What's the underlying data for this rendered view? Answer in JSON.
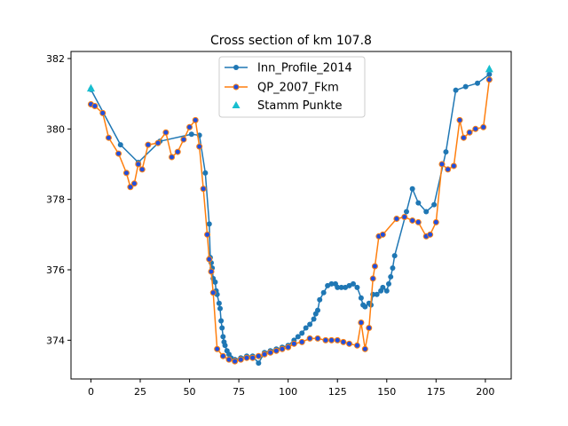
{
  "chart_data": {
    "type": "line",
    "title": "Cross section of km 107.8",
    "xlabel": "",
    "ylabel": "",
    "xlim": [
      -10.1,
      213.1
    ],
    "ylim": [
      372.9,
      382.2
    ],
    "xticks": [
      0,
      25,
      50,
      75,
      100,
      125,
      150,
      175,
      200
    ],
    "yticks": [
      374,
      376,
      378,
      380,
      382
    ],
    "grid": false,
    "legend": "top-center",
    "series": [
      {
        "name": "Inn_Profile_2014",
        "color": "#1f77b4",
        "marker": "dot",
        "points": [
          [
            0,
            381.12
          ],
          [
            15,
            379.55
          ],
          [
            24,
            379.05
          ],
          [
            35,
            379.65
          ],
          [
            51,
            379.85
          ],
          [
            55,
            379.82
          ],
          [
            58,
            378.75
          ],
          [
            60,
            377.3
          ],
          [
            60.5,
            376.35
          ],
          [
            61,
            376.2
          ],
          [
            61.5,
            376.05
          ],
          [
            62,
            375.75
          ],
          [
            63,
            375.65
          ],
          [
            63.5,
            375.4
          ],
          [
            64,
            375.3
          ],
          [
            65,
            375.05
          ],
          [
            65.5,
            374.9
          ],
          [
            66,
            374.55
          ],
          [
            66.5,
            374.35
          ],
          [
            67,
            374.1
          ],
          [
            67.5,
            373.95
          ],
          [
            68,
            373.85
          ],
          [
            69,
            373.7
          ],
          [
            70,
            373.6
          ],
          [
            71,
            373.5
          ],
          [
            73,
            373.45
          ],
          [
            76,
            373.5
          ],
          [
            79,
            373.55
          ],
          [
            82,
            373.55
          ],
          [
            85,
            373.35
          ],
          [
            88,
            373.65
          ],
          [
            91,
            373.7
          ],
          [
            94,
            373.75
          ],
          [
            97,
            373.8
          ],
          [
            100,
            373.85
          ],
          [
            103,
            374.0
          ],
          [
            105,
            374.1
          ],
          [
            107,
            374.2
          ],
          [
            109,
            374.35
          ],
          [
            111,
            374.45
          ],
          [
            113,
            374.6
          ],
          [
            114,
            374.75
          ],
          [
            115,
            374.85
          ],
          [
            116,
            375.15
          ],
          [
            118,
            375.35
          ],
          [
            120,
            375.55
          ],
          [
            122,
            375.6
          ],
          [
            124,
            375.6
          ],
          [
            125,
            375.5
          ],
          [
            127,
            375.5
          ],
          [
            129,
            375.5
          ],
          [
            131,
            375.55
          ],
          [
            133,
            375.6
          ],
          [
            135,
            375.5
          ],
          [
            137,
            375.2
          ],
          [
            138,
            375.0
          ],
          [
            139,
            374.95
          ],
          [
            141,
            375.05
          ],
          [
            142,
            375.0
          ],
          [
            143,
            375.3
          ],
          [
            145,
            375.3
          ],
          [
            147,
            375.4
          ],
          [
            148,
            375.5
          ],
          [
            150,
            375.4
          ],
          [
            151,
            375.6
          ],
          [
            152,
            375.8
          ],
          [
            153,
            376.05
          ],
          [
            154,
            376.4
          ],
          [
            160,
            377.65
          ],
          [
            163,
            378.3
          ],
          [
            166,
            377.9
          ],
          [
            170,
            377.65
          ],
          [
            174,
            377.85
          ],
          [
            180,
            379.35
          ],
          [
            185,
            381.1
          ],
          [
            190,
            381.2
          ],
          [
            196,
            381.3
          ],
          [
            202,
            381.55
          ]
        ]
      },
      {
        "name": "QP_2007_Fkm",
        "color": "#ff7f0e",
        "marker": "dot",
        "points": [
          [
            0,
            380.7
          ],
          [
            2,
            380.65
          ],
          [
            6,
            380.45
          ],
          [
            9,
            379.75
          ],
          [
            14,
            379.3
          ],
          [
            18,
            378.75
          ],
          [
            20,
            378.35
          ],
          [
            22,
            378.45
          ],
          [
            24,
            379.0
          ],
          [
            26,
            378.85
          ],
          [
            29,
            379.55
          ],
          [
            34,
            379.6
          ],
          [
            38,
            379.9
          ],
          [
            41,
            379.2
          ],
          [
            44,
            379.35
          ],
          [
            47,
            379.7
          ],
          [
            50,
            380.05
          ],
          [
            53,
            380.25
          ],
          [
            55,
            379.5
          ],
          [
            57,
            378.3
          ],
          [
            59,
            377.0
          ],
          [
            60,
            376.3
          ],
          [
            61,
            375.95
          ],
          [
            62,
            375.35
          ],
          [
            64,
            373.75
          ],
          [
            67,
            373.55
          ],
          [
            70,
            373.45
          ],
          [
            73,
            373.4
          ],
          [
            76,
            373.45
          ],
          [
            79,
            373.5
          ],
          [
            82,
            373.5
          ],
          [
            85,
            373.55
          ],
          [
            88,
            373.6
          ],
          [
            91,
            373.65
          ],
          [
            94,
            373.7
          ],
          [
            97,
            373.75
          ],
          [
            100,
            373.8
          ],
          [
            103,
            373.9
          ],
          [
            107,
            373.95
          ],
          [
            111,
            374.05
          ],
          [
            115,
            374.05
          ],
          [
            119,
            374.0
          ],
          [
            122,
            374.0
          ],
          [
            125,
            374.0
          ],
          [
            128,
            373.95
          ],
          [
            131,
            373.9
          ],
          [
            135,
            373.85
          ],
          [
            137,
            374.5
          ],
          [
            139,
            373.75
          ],
          [
            141,
            374.35
          ],
          [
            143,
            375.75
          ],
          [
            144,
            376.1
          ],
          [
            146,
            376.95
          ],
          [
            148,
            377.0
          ],
          [
            155,
            377.45
          ],
          [
            159,
            377.5
          ],
          [
            163,
            377.4
          ],
          [
            166,
            377.35
          ],
          [
            170,
            376.95
          ],
          [
            172,
            377.0
          ],
          [
            175,
            377.35
          ],
          [
            178,
            379.0
          ],
          [
            181,
            378.85
          ],
          [
            184,
            378.95
          ],
          [
            187,
            380.25
          ],
          [
            189,
            379.75
          ],
          [
            192,
            379.9
          ],
          [
            195,
            380.0
          ],
          [
            199,
            380.05
          ],
          [
            202,
            381.4
          ]
        ]
      }
    ],
    "stamm_punkte": {
      "name": "Stamm Punkte",
      "color": "#17becf",
      "marker": "triangle",
      "points": [
        [
          0,
          381.15
        ],
        [
          202,
          381.7
        ]
      ]
    }
  }
}
